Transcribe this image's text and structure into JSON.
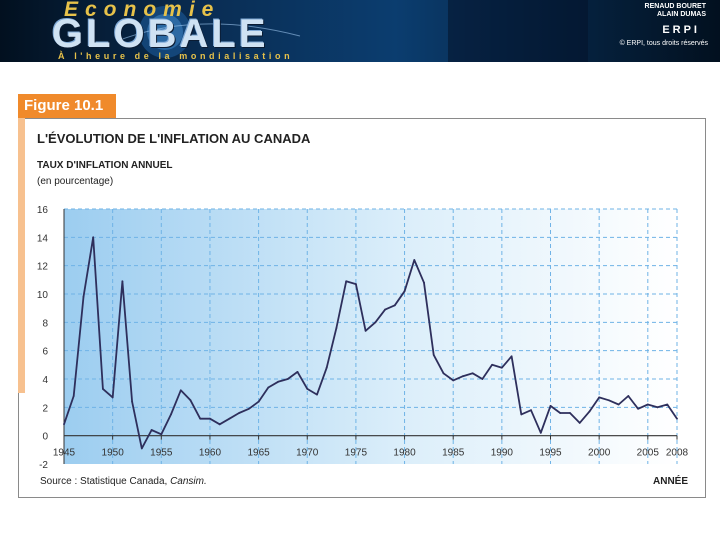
{
  "header": {
    "book_title_top": "Économie",
    "book_title_main": "GLOBALE",
    "book_subtitle": "À l'heure de la mondialisation",
    "authors": [
      "RENAUD BOURET",
      "ALAIN DUMAS"
    ],
    "publisher": "ERPI",
    "copyright": "© ERPI, tous droits réservés"
  },
  "figure": {
    "label": "Figure 10.1",
    "accent_color": "#f08a2b"
  },
  "chart_data": {
    "type": "line",
    "title": "L'ÉVOLUTION DE L'INFLATION AU CANADA",
    "ylabel": "TAUX D'INFLATION ANNUEL",
    "ylabel_unit": "(en pourcentage)",
    "xlabel": "ANNÉE",
    "source_prefix": "Source : Statistique Canada, ",
    "source_name": "Cansim.",
    "x_ticks": [
      "1945",
      "1950",
      "1955",
      "1960",
      "1965",
      "1970",
      "1975",
      "1980",
      "1985",
      "1990",
      "1995",
      "2000",
      "2005",
      "2008"
    ],
    "y_ticks": [
      "-2",
      "0",
      "2",
      "4",
      "6",
      "8",
      "10",
      "12",
      "14",
      "16"
    ],
    "ylim": [
      -2,
      16
    ],
    "xlim": [
      1945,
      2008
    ],
    "grid": true,
    "line_color": "#2e2f5c",
    "x": [
      1945,
      1946,
      1947,
      1948,
      1949,
      1950,
      1951,
      1952,
      1953,
      1954,
      1955,
      1956,
      1957,
      1958,
      1959,
      1960,
      1961,
      1962,
      1963,
      1964,
      1965,
      1966,
      1967,
      1968,
      1969,
      1970,
      1971,
      1972,
      1973,
      1974,
      1975,
      1976,
      1977,
      1978,
      1979,
      1980,
      1981,
      1982,
      1983,
      1984,
      1985,
      1986,
      1987,
      1988,
      1989,
      1990,
      1991,
      1992,
      1993,
      1994,
      1995,
      1996,
      1997,
      1998,
      1999,
      2000,
      2001,
      2002,
      2003,
      2004,
      2005,
      2006,
      2007,
      2008
    ],
    "values": [
      0.8,
      2.8,
      9.8,
      14.0,
      3.3,
      2.7,
      10.9,
      2.4,
      -0.9,
      0.4,
      0.1,
      1.5,
      3.2,
      2.5,
      1.2,
      1.2,
      0.8,
      1.2,
      1.6,
      1.9,
      2.4,
      3.4,
      3.8,
      4.0,
      4.5,
      3.3,
      2.9,
      4.8,
      7.6,
      10.9,
      10.7,
      7.4,
      8.0,
      8.9,
      9.2,
      10.2,
      12.4,
      10.8,
      5.7,
      4.4,
      3.9,
      4.2,
      4.4,
      4.0,
      5.0,
      4.8,
      5.6,
      1.5,
      1.8,
      0.2,
      2.1,
      1.6,
      1.6,
      0.9,
      1.7,
      2.7,
      2.5,
      2.2,
      2.8,
      1.9,
      2.2,
      2.0,
      2.2,
      1.2
    ]
  }
}
